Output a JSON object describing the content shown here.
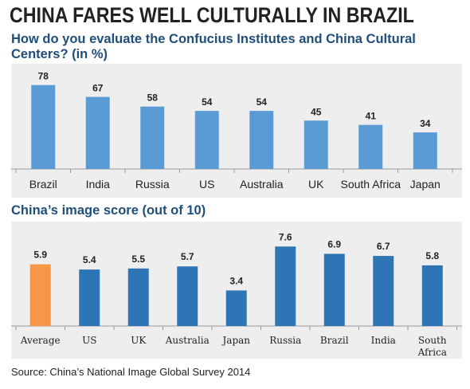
{
  "headline": "CHINA FARES WELL CULTURALLY IN BRAZIL",
  "source": "Source: China’s National Image Global Survey 2014",
  "chart_data": [
    {
      "type": "bar",
      "title": "How do you evaluate the Confucius Institutes and China Cultural Centers? (in %)",
      "categories": [
        "Brazil",
        "India",
        "Russia",
        "US",
        "Australia",
        "UK",
        "South Africa",
        "Japan"
      ],
      "values": [
        78,
        67,
        58,
        54,
        54,
        45,
        41,
        34
      ],
      "value_labels": [
        "78",
        "67",
        "58",
        "54",
        "54",
        "45",
        "41",
        "34"
      ],
      "ylim": [
        0,
        80
      ],
      "grid": false,
      "colors": {
        "bar": "#5b9bd5"
      }
    },
    {
      "type": "bar",
      "title": "China’s image score (out of 10)",
      "categories": [
        "Average",
        "US",
        "UK",
        "Australia",
        "Japan",
        "Russia",
        "Brazil",
        "India",
        "South Africa"
      ],
      "values": [
        5.9,
        5.4,
        5.5,
        5.7,
        3.4,
        7.6,
        6.9,
        6.7,
        5.8
      ],
      "value_labels": [
        "5.9",
        "5.4",
        "5.5",
        "5.7",
        "3.4",
        "7.6",
        "6.9",
        "6.7",
        "5.8"
      ],
      "ylim": [
        0,
        8
      ],
      "grid": false,
      "colors": {
        "bar": "#2e75b6",
        "highlight": "#f79646"
      },
      "highlight_category": "Average"
    }
  ]
}
